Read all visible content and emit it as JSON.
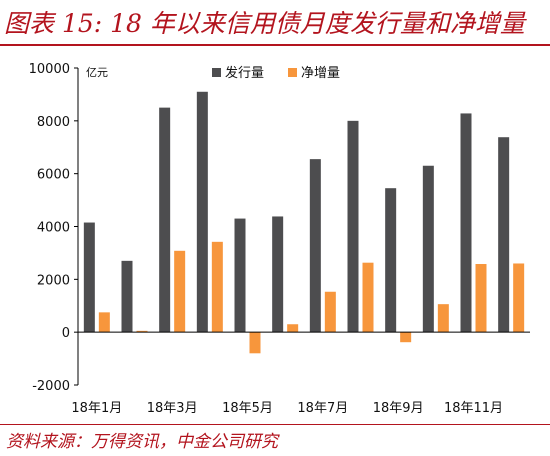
{
  "title": "图表 15: 18 年以来信用债月度发行量和净增量",
  "source": "资料来源：万得资讯，中金公司研究",
  "colors": {
    "accent": "#b3141e",
    "issuance": "#4d4d4f",
    "net": "#f7963c"
  },
  "chart_data": {
    "type": "bar",
    "unit": "亿元",
    "categories": [
      "18年1月",
      "18年2月",
      "18年3月",
      "18年4月",
      "18年5月",
      "18年6月",
      "18年7月",
      "18年8月",
      "18年9月",
      "18年10月",
      "18年11月",
      "18年12月"
    ],
    "xtick_labels": [
      "18年1月",
      "",
      "18年3月",
      "",
      "18年5月",
      "",
      "18年7月",
      "",
      "18年9月",
      "",
      "18年11月",
      ""
    ],
    "series": [
      {
        "name": "发行量",
        "values": [
          4150,
          2700,
          8500,
          9100,
          4300,
          4380,
          6550,
          8000,
          5450,
          6300,
          8280,
          7380
        ]
      },
      {
        "name": "净增量",
        "values": [
          750,
          50,
          3080,
          3420,
          -800,
          300,
          1530,
          2630,
          -380,
          1060,
          2580,
          2600
        ]
      }
    ],
    "yticks": [
      "10000",
      "8000",
      "6000",
      "4000",
      "2000",
      "0",
      "-2000"
    ],
    "ylim": [
      -2000,
      10000
    ],
    "legend_position": "top"
  }
}
